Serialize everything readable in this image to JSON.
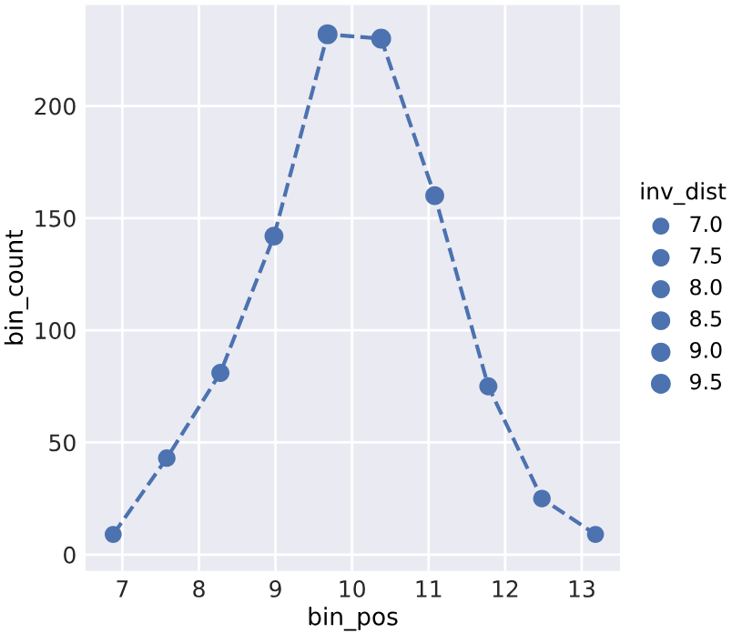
{
  "chart_data": {
    "type": "bubble",
    "xlabel": "bin_pos",
    "ylabel": "bin_count",
    "legend_title": "inv_dist",
    "x": [
      6.88,
      7.58,
      8.28,
      8.98,
      9.68,
      10.38,
      11.08,
      11.78,
      12.48,
      13.18
    ],
    "series": [
      {
        "type": "line",
        "color": "#4c72b0",
        "line_style": "dashed",
        "marker": "none",
        "values": [
          9,
          43,
          81,
          142,
          232,
          230,
          160,
          75,
          25,
          9
        ]
      },
      {
        "color": "#4c72b0",
        "marker": "circle",
        "values": [
          9,
          43,
          81,
          142,
          232,
          230,
          160,
          75,
          25,
          9
        ],
        "sizes": [
          7.0,
          7.4,
          7.9,
          8.6,
          9.6,
          9.6,
          8.6,
          7.9,
          7.4,
          7.0
        ]
      }
    ],
    "size_legend": [
      {
        "value": 7.0,
        "label": "7.0"
      },
      7.5,
      {
        "value": 8.0,
        "label": "8.0"
      },
      8.5,
      {
        "value": 9.0,
        "label": "9.0"
      },
      9.5
    ],
    "xlim": [
      6.52,
      13.5
    ],
    "ylim": [
      -7.3,
      245
    ],
    "xticks": [
      7,
      8,
      9,
      10,
      11,
      12,
      13
    ],
    "yticks": [
      0,
      50,
      100,
      150,
      200
    ],
    "grid": true
  }
}
